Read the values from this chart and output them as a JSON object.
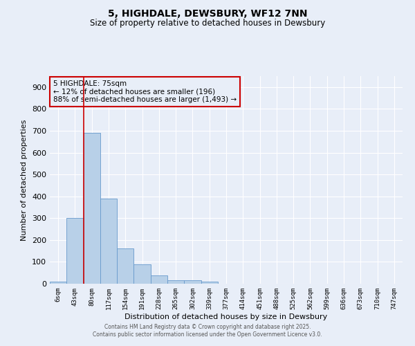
{
  "title": "5, HIGHDALE, DEWSBURY, WF12 7NN",
  "subtitle": "Size of property relative to detached houses in Dewsbury",
  "xlabel": "Distribution of detached houses by size in Dewsbury",
  "ylabel": "Number of detached properties",
  "bar_labels": [
    "6sqm",
    "43sqm",
    "80sqm",
    "117sqm",
    "154sqm",
    "191sqm",
    "228sqm",
    "265sqm",
    "302sqm",
    "339sqm",
    "377sqm",
    "414sqm",
    "451sqm",
    "488sqm",
    "525sqm",
    "562sqm",
    "599sqm",
    "636sqm",
    "673sqm",
    "710sqm",
    "747sqm"
  ],
  "bar_values": [
    8,
    300,
    690,
    390,
    160,
    90,
    38,
    17,
    15,
    10,
    0,
    0,
    0,
    0,
    0,
    0,
    0,
    0,
    0,
    0,
    0
  ],
  "bar_color": "#b8d0e8",
  "bar_edge_color": "#6699cc",
  "ylim": [
    0,
    950
  ],
  "yticks": [
    0,
    100,
    200,
    300,
    400,
    500,
    600,
    700,
    800,
    900
  ],
  "vline_x": 1.5,
  "vline_color": "#cc0000",
  "annotation_title": "5 HIGHDALE: 75sqm",
  "annotation_line1": "← 12% of detached houses are smaller (196)",
  "annotation_line2": "88% of semi-detached houses are larger (1,493) →",
  "annotation_box_color": "#cc0000",
  "background_color": "#e8eef8",
  "grid_color": "#d0d8e8",
  "footer1": "Contains HM Land Registry data © Crown copyright and database right 2025.",
  "footer2": "Contains public sector information licensed under the Open Government Licence v3.0."
}
